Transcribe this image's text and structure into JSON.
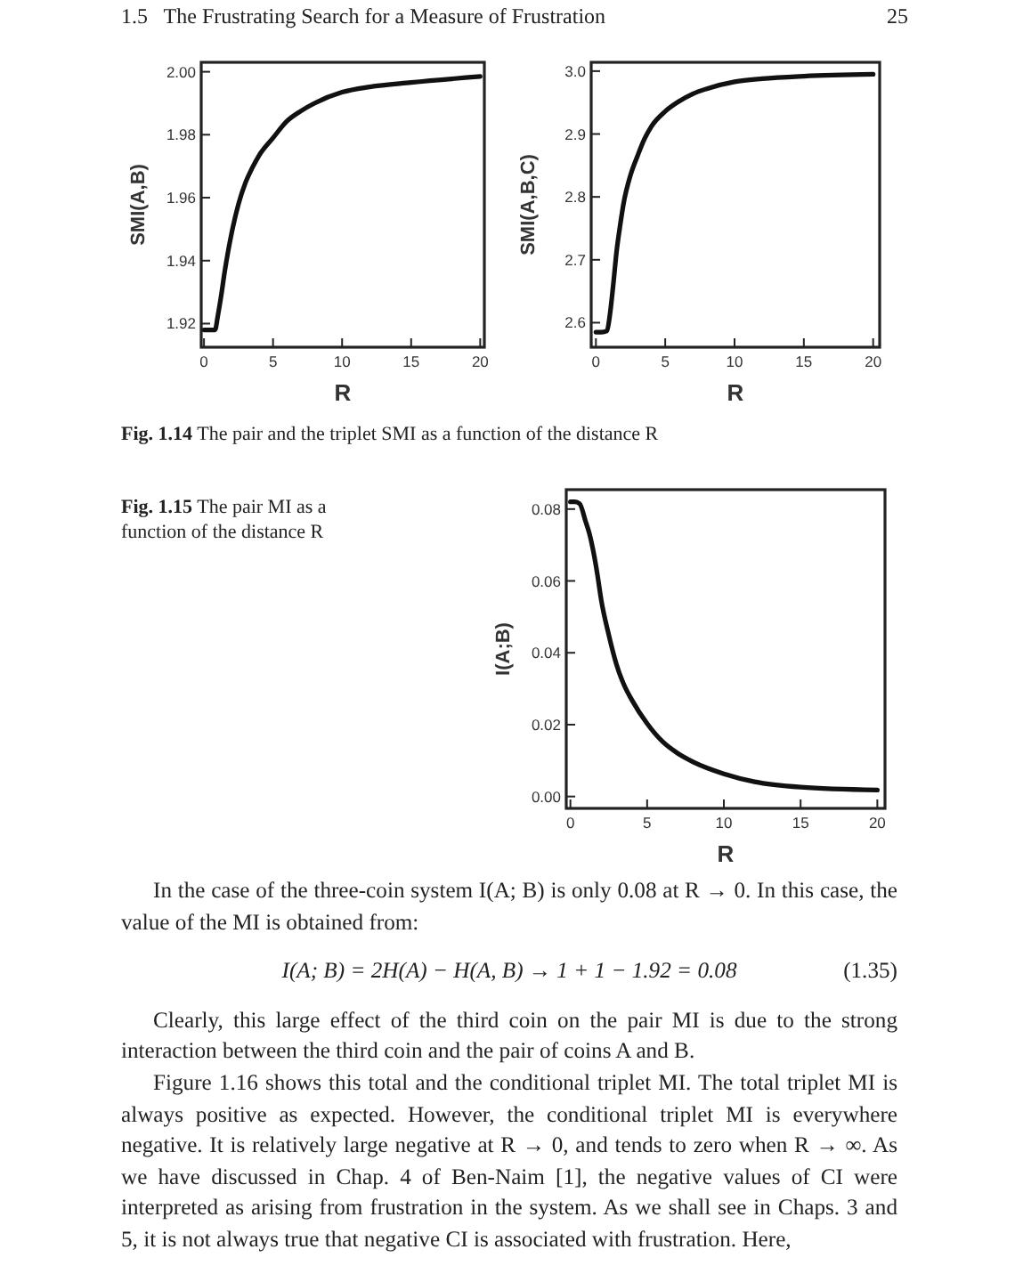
{
  "chart_data": [
    {
      "type": "line",
      "xlabel": "R",
      "ylabel": "SMI(A,B)",
      "xlim": [
        -0.2,
        20.3
      ],
      "ylim": [
        1.9125,
        2.003
      ],
      "xticks": [
        0,
        5,
        10,
        15,
        20
      ],
      "yticks": [
        1.92,
        1.94,
        1.96,
        1.98,
        {
          "value": 2.0,
          "label": "2.00"
        }
      ],
      "grid": false,
      "marker": "none",
      "line_style": "solid",
      "annotations": [
        "1.5   The Frustrating Search for a Measure of Frustration",
        "25",
        "Fig. 1.14  The pair and the triplet SMI as a function of the distance R"
      ],
      "series": [
        {
          "color": "#111111",
          "x": [
            0,
            0.4,
            0.8,
            1,
            1.25,
            1.5,
            1.75,
            2,
            2.5,
            3,
            3.5,
            4,
            5,
            6,
            7,
            8,
            10,
            12,
            15,
            20
          ],
          "values": [
            1.918,
            1.918,
            1.918,
            1.9224,
            1.929,
            1.9365,
            1.943,
            1.9487,
            1.958,
            1.9647,
            1.9695,
            1.9735,
            1.979,
            1.9843,
            1.9875,
            1.99,
            1.9935,
            1.9952,
            1.9966,
            1.9985
          ]
        }
      ]
    },
    {
      "type": "line",
      "xlabel": "R",
      "ylabel": "SMI(A,B,C)",
      "xlim": [
        -0.34,
        20.47
      ],
      "ylim": [
        2.561,
        3.014
      ],
      "xticks": [
        0,
        5,
        10,
        15,
        20
      ],
      "yticks": [
        2.6,
        2.7,
        2.8,
        2.9,
        {
          "value": 3.0,
          "label": "3.0"
        }
      ],
      "grid": false,
      "marker": "none",
      "line_style": "solid",
      "series": [
        {
          "color": "#111111",
          "x": [
            0,
            0.4,
            0.8,
            1,
            1.25,
            1.5,
            1.75,
            2,
            2.5,
            3,
            3.5,
            4,
            5,
            6,
            7,
            8,
            10,
            12,
            15,
            20
          ],
          "values": [
            2.585,
            2.585,
            2.587,
            2.611,
            2.66,
            2.715,
            2.755,
            2.79,
            2.835,
            2.865,
            2.892,
            2.912,
            2.936,
            2.952,
            2.964,
            2.972,
            2.983,
            2.988,
            2.992,
            2.995
          ]
        }
      ]
    },
    {
      "type": "line",
      "xlabel": "R",
      "ylabel": "I(A;B)",
      "xlim": [
        -0.27,
        20.5
      ],
      "ylim": [
        -0.0033,
        0.0854
      ],
      "xticks": [
        0,
        5,
        10,
        15,
        20
      ],
      "yticks": [
        {
          "value": 0,
          "label": "0.00"
        },
        0.02,
        0.04,
        0.06,
        0.08
      ],
      "grid": false,
      "marker": "none",
      "line_style": "solid",
      "annotations": [
        "Fig. 1.15  The pair MI as a function of the distance R",
        "In the case of the three-coin system I(A; B) is only 0.08 at R → 0. In this case, the value of the MI is obtained from:",
        "I(A; B) = 2H(A) − H(A, B) → 1 + 1 − 1.92 = 0.08",
        "(1.35)",
        "Clearly, this large effect of the third coin on the pair MI is due to the strong interaction between the third coin and the pair of coins A and B.",
        "Figure 1.16 shows this total and the conditional triplet MI. The total triplet MI is always positive as expected. However, the conditional triplet MI is everywhere negative. It is relatively large negative at R → 0, and tends to zero when R → ∞. As we have discussed in Chap. 4 of Ben-Naim [1], the negative values of CI were interpreted as arising from frustration in the system. As we shall see in Chaps. 3 and 5, it is not always true that negative CI is associated with frustration. Here,"
      ],
      "series": [
        {
          "color": "#111111",
          "x": [
            0,
            0.3,
            0.6,
            1,
            1.25,
            1.5,
            1.75,
            2,
            2.5,
            3,
            3.5,
            4,
            5,
            6,
            7,
            8,
            10,
            12,
            15,
            20
          ],
          "values": [
            0.082,
            0.082,
            0.0815,
            0.0764,
            0.073,
            0.0681,
            0.062,
            0.0549,
            0.045,
            0.0368,
            0.031,
            0.0269,
            0.0203,
            0.0153,
            0.012,
            0.0096,
            0.0063,
            0.0041,
            0.0026,
            0.0018
          ]
        }
      ]
    }
  ]
}
